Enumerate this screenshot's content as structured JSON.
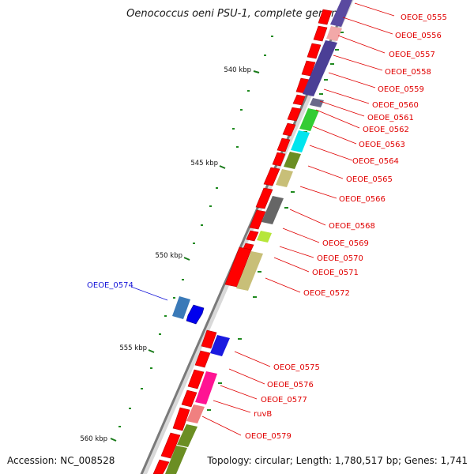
{
  "title": "Oenococcus oeni PSU-1, complete genome",
  "accession": "Accession: NC_008528",
  "topology": "Topology: circular; Length: 1,780,517 bp; Genes: 1,741",
  "colors": {
    "backbone": "#7a7a7a",
    "red_gene": "#ff0000",
    "label_red": "#e00000",
    "label_blue": "#1414d8",
    "tick_green": "#1f8a1f",
    "scale_tick": "#1a7a1a"
  },
  "scale_labels": [
    "540 kbp",
    "545 kbp",
    "550 kbp",
    "555 kbp",
    "560 kbp"
  ],
  "gene_labels": [
    "OEOE_0555",
    "OEOE_0556",
    "OEOE_0557",
    "OEOE_0558",
    "OEOE_0559",
    "OEOE_0560",
    "OEOE_0561",
    "OEOE_0562",
    "OEOE_0563",
    "OEOE_0564",
    "OEOE_0565",
    "OEOE_0566",
    "OEOE_0568",
    "OEOE_0569",
    "OEOE_0570",
    "OEOE_0571",
    "OEOE_0572",
    "OEOE_0575",
    "OEOE_0576",
    "OEOE_0577",
    "ruvB",
    "OEOE_0579"
  ],
  "left_gene_label": "OEOE_0574"
}
